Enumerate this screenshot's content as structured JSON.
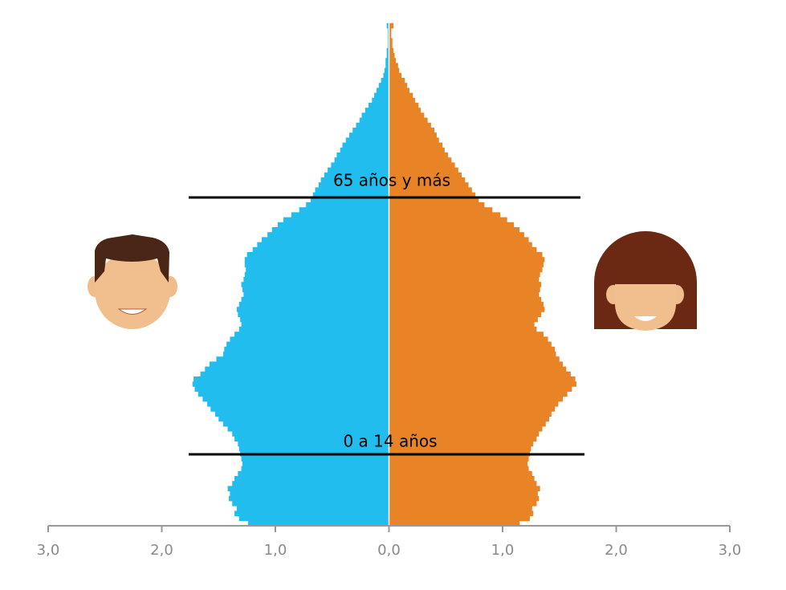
{
  "chart_data": {
    "type": "pyramid",
    "annotations": [
      "65 años y más",
      "0 a 14 años"
    ],
    "series": [
      {
        "color": "#21BDEE",
        "values": [
          -1.24,
          -1.32,
          -1.36,
          -1.34,
          -1.38,
          -1.41,
          -1.4,
          -1.42,
          -1.38,
          -1.36,
          -1.33,
          -1.3,
          -1.29,
          -1.3,
          -1.31,
          -1.32,
          -1.33,
          -1.36,
          -1.38,
          -1.42,
          -1.46,
          -1.5,
          -1.53,
          -1.57,
          -1.6,
          -1.64,
          -1.68,
          -1.71,
          -1.73,
          -1.72,
          -1.66,
          -1.62,
          -1.58,
          -1.52,
          -1.46,
          -1.45,
          -1.43,
          -1.4,
          -1.36,
          -1.32,
          -1.3,
          -1.31,
          -1.33,
          -1.34,
          -1.32,
          -1.3,
          -1.28,
          -1.29,
          -1.3,
          -1.28,
          -1.27,
          -1.26,
          -1.27,
          -1.27,
          -1.25,
          -1.2,
          -1.16,
          -1.12,
          -1.07,
          -1.03,
          -0.98,
          -0.93,
          -0.86,
          -0.79,
          -0.73,
          -0.69,
          -0.67,
          -0.65,
          -0.62,
          -0.6,
          -0.57,
          -0.54,
          -0.51,
          -0.48,
          -0.46,
          -0.43,
          -0.41,
          -0.38,
          -0.35,
          -0.32,
          -0.29,
          -0.26,
          -0.24,
          -0.21,
          -0.18,
          -0.15,
          -0.13,
          -0.11,
          -0.09,
          -0.07,
          -0.05,
          -0.04,
          -0.03,
          -0.03,
          -0.02,
          -0.02,
          -0.01,
          -0.01,
          -0.01,
          -0.01,
          -0.02
        ]
      },
      {
        "color": "#E98426",
        "values": [
          1.15,
          1.24,
          1.27,
          1.26,
          1.3,
          1.32,
          1.31,
          1.33,
          1.3,
          1.28,
          1.26,
          1.23,
          1.22,
          1.23,
          1.24,
          1.25,
          1.27,
          1.3,
          1.32,
          1.35,
          1.38,
          1.41,
          1.43,
          1.46,
          1.49,
          1.53,
          1.57,
          1.61,
          1.65,
          1.64,
          1.6,
          1.56,
          1.53,
          1.5,
          1.47,
          1.46,
          1.43,
          1.4,
          1.36,
          1.3,
          1.28,
          1.31,
          1.34,
          1.37,
          1.36,
          1.34,
          1.32,
          1.33,
          1.34,
          1.32,
          1.33,
          1.35,
          1.36,
          1.37,
          1.35,
          1.3,
          1.26,
          1.23,
          1.19,
          1.15,
          1.1,
          1.04,
          0.98,
          0.91,
          0.84,
          0.79,
          0.76,
          0.73,
          0.7,
          0.67,
          0.64,
          0.61,
          0.58,
          0.55,
          0.52,
          0.49,
          0.47,
          0.44,
          0.42,
          0.4,
          0.37,
          0.34,
          0.31,
          0.28,
          0.26,
          0.23,
          0.21,
          0.18,
          0.16,
          0.14,
          0.11,
          0.09,
          0.08,
          0.06,
          0.05,
          0.04,
          0.03,
          0.03,
          0.02,
          0.02,
          0.04
        ]
      }
    ],
    "xlim": [
      -3,
      3
    ],
    "xticks": [
      {
        "value": -3,
        "label": "3,0"
      },
      {
        "value": -2,
        "label": "2,0"
      },
      {
        "value": -1,
        "label": "1,0"
      },
      {
        "value": 0,
        "label": "0,0"
      },
      {
        "value": 1,
        "label": "1,0"
      },
      {
        "value": 2,
        "label": "2,0"
      },
      {
        "value": 3,
        "label": "3,0"
      }
    ]
  }
}
